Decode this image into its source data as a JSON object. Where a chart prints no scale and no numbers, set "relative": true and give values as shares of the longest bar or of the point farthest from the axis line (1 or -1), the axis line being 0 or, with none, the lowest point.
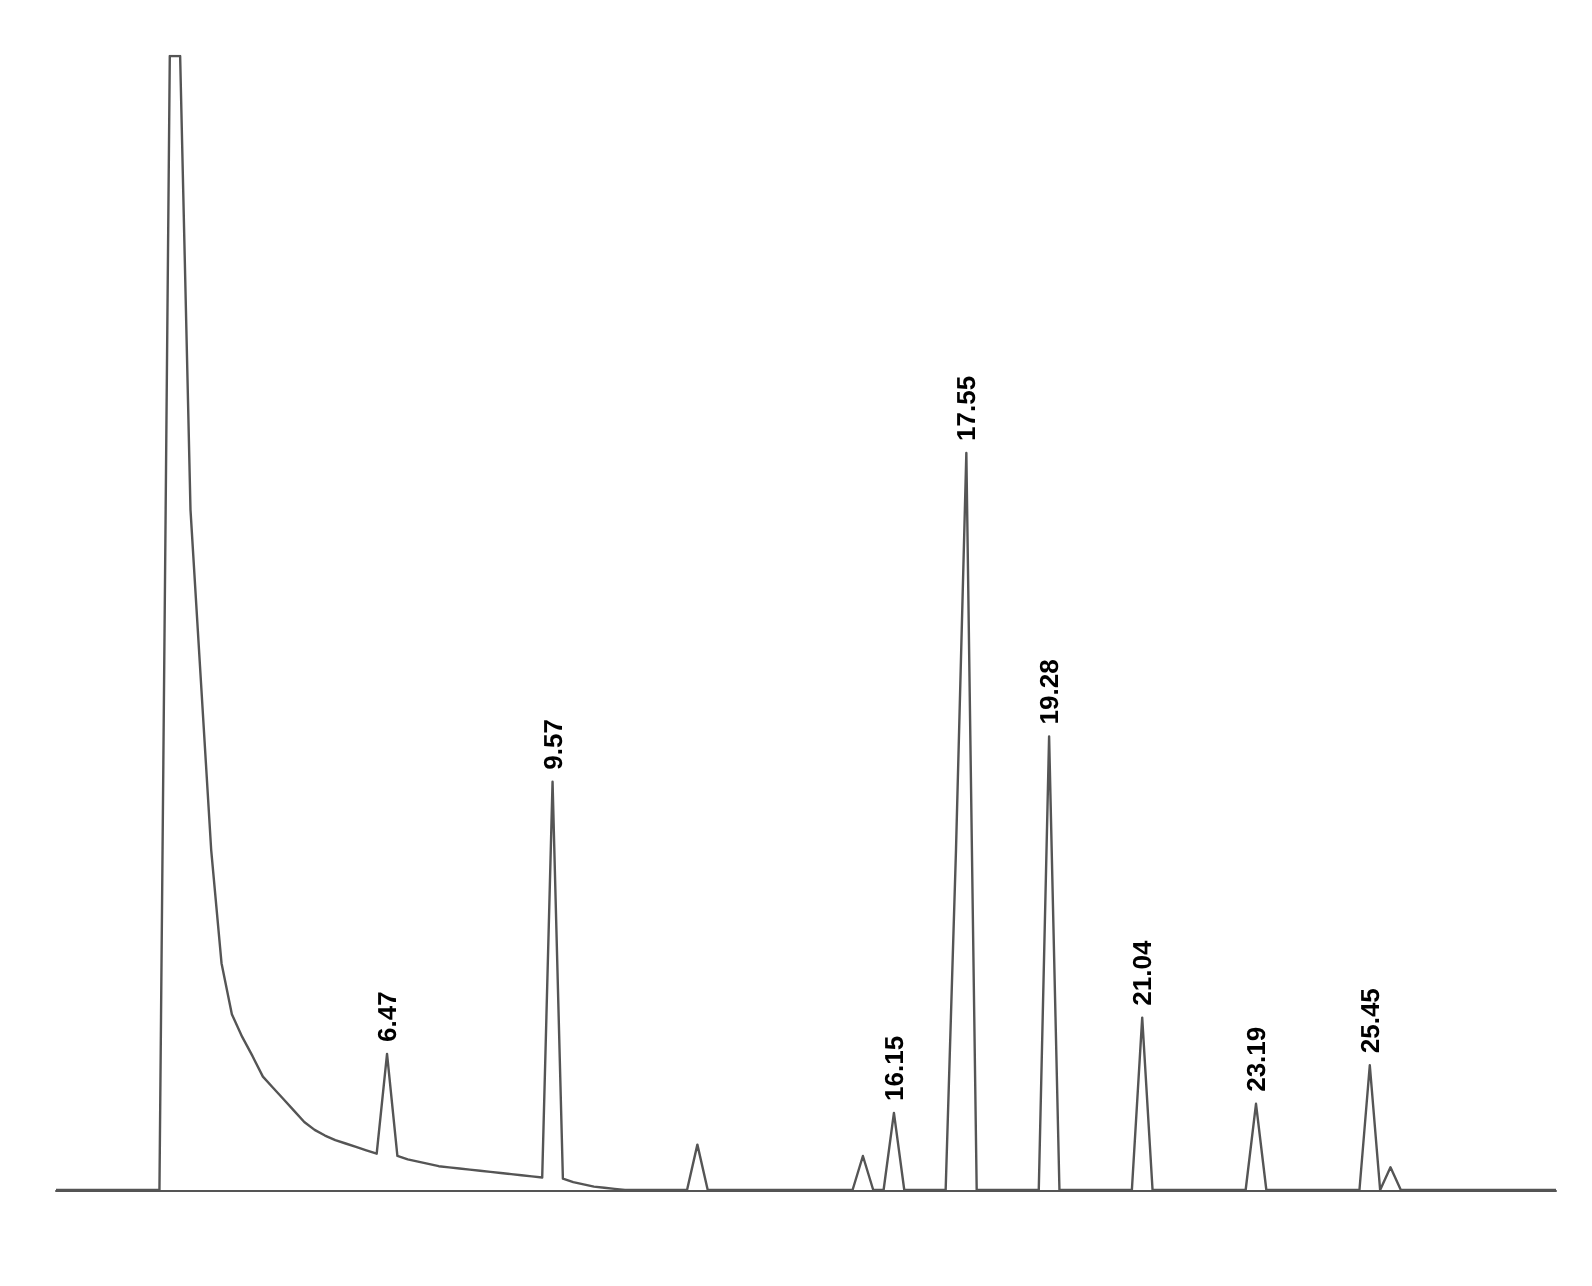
{
  "chart_data": {
    "type": "line",
    "relative": true,
    "grid": false,
    "marker": "none",
    "categories": [
      null,
      null,
      null,
      null,
      null,
      null,
      null,
      null,
      null,
      null,
      null,
      null,
      null,
      null,
      null,
      null,
      null,
      null,
      null,
      null,
      null,
      null,
      null,
      null,
      null,
      null,
      null,
      null,
      null,
      null,
      null,
      null,
      null,
      null,
      null,
      null,
      null,
      null,
      null,
      null,
      null,
      null,
      null,
      null,
      null,
      null,
      null,
      null,
      null,
      null,
      null,
      null,
      null,
      null,
      null,
      null,
      null,
      null,
      null,
      null,
      null,
      null,
      null,
      null,
      null,
      null,
      null,
      null,
      null,
      null,
      null,
      null,
      null,
      null,
      null,
      null,
      null,
      null,
      null,
      null,
      null,
      null,
      null,
      null,
      null,
      null,
      null,
      null,
      null,
      null,
      null,
      null,
      null,
      null,
      null,
      null,
      null,
      null,
      null,
      null,
      null,
      null,
      null,
      null,
      null,
      null,
      null,
      null,
      null,
      null,
      null,
      null,
      null,
      null,
      null,
      null,
      null,
      null,
      null,
      null,
      null,
      null,
      null,
      null,
      null,
      null,
      null,
      null,
      null,
      null,
      null,
      null,
      null,
      null,
      null,
      null,
      null,
      null,
      null,
      null,
      null,
      null,
      null,
      null,
      null,
      null
    ],
    "values": [
      0,
      0,
      0,
      0,
      0,
      0,
      0,
      0,
      0,
      0,
      0,
      1,
      1,
      0.6,
      0.45,
      0.3,
      0.2,
      0.155,
      0.135,
      0.118,
      0.1,
      0.09,
      0.08,
      0.07,
      0.06,
      0.053,
      0.048,
      0.044,
      0.041,
      0.038,
      0.035,
      0.032,
      0.12,
      0.03,
      0.027,
      0.025,
      0.023,
      0.021,
      0.02,
      0.019,
      0.018,
      0.017,
      0.016,
      0.015,
      0.014,
      0.013,
      0.012,
      0.011,
      0.36,
      0.01,
      0.007,
      0.005,
      0.003,
      0.002,
      0.001,
      0,
      0,
      0,
      0,
      0,
      0,
      0,
      0.04,
      0,
      0,
      0,
      0,
      0,
      0,
      0,
      0,
      0,
      0,
      0,
      0,
      0,
      0,
      0,
      0.03,
      0,
      0,
      0.068,
      0,
      0,
      0,
      0,
      0,
      0.3,
      0.65,
      0,
      0,
      0,
      0,
      0,
      0,
      0,
      0.4,
      0,
      0,
      0,
      0,
      0,
      0,
      0,
      0,
      0.152,
      0,
      0,
      0,
      0,
      0,
      0,
      0,
      0,
      0,
      0,
      0.076,
      0,
      0,
      0,
      0,
      0,
      0,
      0,
      0,
      0,
      0,
      0.11,
      0,
      0.02,
      0,
      0,
      0,
      0,
      0,
      0,
      0,
      0,
      0,
      0,
      0,
      0,
      0,
      0,
      0,
      0
    ],
    "annotations": [
      {
        "text": "6.47",
        "y": 0.12
      },
      {
        "text": "9.57",
        "y": 0.36
      },
      {
        "text": "16.15",
        "y": 0.068
      },
      {
        "text": "17.55",
        "y": 0.65
      },
      {
        "text": "19.28",
        "y": 0.4
      },
      {
        "text": "21.04",
        "y": 0.152
      },
      {
        "text": "23.19",
        "y": 0.076
      },
      {
        "text": "25.45",
        "y": 0.11
      }
    ],
    "color": "#555555"
  }
}
